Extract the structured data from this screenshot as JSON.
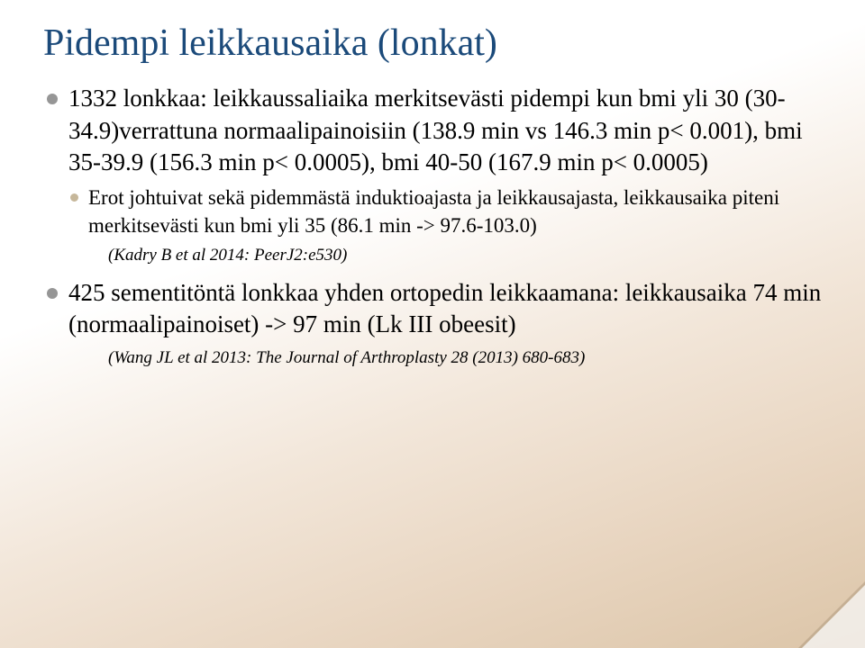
{
  "colors": {
    "title": "#1b4a7a",
    "bullet_outer": "#969696",
    "bullet_inner": "#c6b79a",
    "gradient_start": "#ffffff",
    "gradient_end": "#dcc5a8",
    "text": "#000000"
  },
  "typography": {
    "title_fontsize": 42,
    "body_fontsize": 27,
    "sub_fontsize": 23,
    "cite_fontsize": 19,
    "font_family": "Palatino Linotype"
  },
  "title": "Pidempi leikkausaika (lonkat)",
  "bullets": {
    "b1": "1332 lonkkaa: leikkaussaliaika merkitsevästi pidempi kun bmi yli 30 (30-34.9)verrattuna normaalipainoisiin (138.9 min vs 146.3 min p< 0.001), bmi 35-39.9 (156.3 min p< 0.0005), bmi 40-50 (167.9 min p< 0.0005)",
    "b1_sub": "Erot johtuivat sekä pidemmästä induktioajasta ja leikkausajasta, leikkausaika piteni merkitsevästi kun bmi yli 35 (86.1 min -> 97.6-103.0)",
    "b1_cite": "(Kadry B et al 2014: PeerJ2:e530)",
    "b2": "425 sementitöntä lonkkaa yhden ortopedin leikkaamana: leikkausaika 74 min (normaalipainoiset) -> 97 min (Lk III obeesit)",
    "b2_cite": "(Wang JL et al 2013: The Journal of Arthroplasty 28 (2013) 680-683)"
  }
}
